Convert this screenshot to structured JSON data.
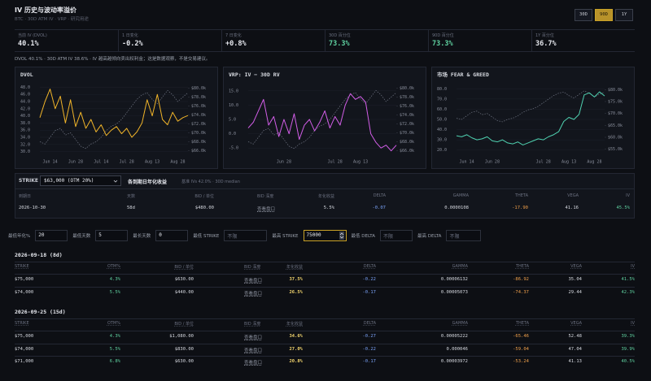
{
  "header": {
    "title": "IV 历史与波动率溢价",
    "subtitle": "BTC · 30D ATM IV · VRP · 研究用途",
    "ranges": [
      "30D",
      "90D",
      "1Y"
    ],
    "active_range": 1
  },
  "stats": [
    {
      "label": "当前 IV (DVOL)",
      "value": "40.1%",
      "tone": "plain"
    },
    {
      "label": "1 日变化",
      "value": "-0.2%",
      "tone": "plain"
    },
    {
      "label": "7 日变化",
      "value": "+0.8%",
      "tone": "plain"
    },
    {
      "label": "30D 百分位",
      "value": "73.3%",
      "tone": "green"
    },
    {
      "label": "90D 百分位",
      "value": "73.3%",
      "tone": "green"
    },
    {
      "label": "1Y 百分位",
      "value": "36.7%",
      "tone": "plain"
    }
  ],
  "note": "DVOL 40.1% · 30D ATM IV 38.6% · IV 越高越倾向卖出权利金；这是数据观察，不是交易建议。",
  "chart_data": [
    {
      "type": "line",
      "title": "DVOL",
      "categories": [
        null,
        null,
        "Jun 14",
        null,
        null,
        null,
        null,
        "Jun 28",
        null,
        null,
        null,
        null,
        "Jul 14",
        null,
        null,
        null,
        null,
        "Jul 28",
        null,
        null,
        null,
        null,
        "Aug 13",
        null,
        null,
        null,
        null,
        "Aug 28",
        null,
        null
      ],
      "series": [
        {
          "color": "#f0b429",
          "values": [
            39.5,
            44.0,
            47.5,
            42.0,
            45.5,
            38.0,
            44.5,
            37.0,
            41.0,
            36.5,
            39.0,
            35.5,
            37.5,
            34.5,
            36.0,
            37.0,
            35.0,
            36.5,
            34.0,
            35.5,
            38.0,
            44.5,
            40.0,
            46.0,
            39.0,
            37.5,
            41.0,
            38.5,
            39.5,
            40.1
          ]
        },
        {
          "color": "#6f7482",
          "axis": "y2",
          "dashed": true,
          "values": [
            68000,
            67500,
            69000,
            70500,
            71000,
            69500,
            70000,
            68500,
            67000,
            66500,
            67500,
            68000,
            69000,
            70500,
            71500,
            72000,
            73000,
            74500,
            76000,
            77500,
            78500,
            79000,
            77500,
            76500,
            78000,
            79500,
            78500,
            77000,
            78000,
            79000
          ]
        }
      ],
      "ylim": [
        29,
        49
      ],
      "yticks": [
        {
          "value": 48,
          "label": "48.0"
        },
        {
          "value": 46,
          "label": "46.0"
        },
        {
          "value": 44,
          "label": "44.0"
        },
        {
          "value": 42,
          "label": "42.0"
        },
        {
          "value": 40,
          "label": "40.0"
        },
        {
          "value": 38,
          "label": "38.0"
        },
        {
          "value": 36,
          "label": "36.0"
        },
        {
          "value": 34,
          "label": "34.0"
        },
        {
          "value": 32,
          "label": "32.0"
        },
        {
          "value": 30,
          "label": "30.0"
        }
      ],
      "y2lim": [
        65000,
        81000
      ],
      "y2ticks": [
        {
          "value": 80000,
          "label": "$80.0k"
        },
        {
          "value": 78000,
          "label": "$78.0k"
        },
        {
          "value": 76000,
          "label": "$76.0k"
        },
        {
          "value": 74000,
          "label": "$74.0k"
        },
        {
          "value": 72000,
          "label": "$72.0k"
        },
        {
          "value": 70000,
          "label": "$70.0k"
        },
        {
          "value": 68000,
          "label": "$68.0k"
        },
        {
          "value": 66000,
          "label": "$66.0k"
        }
      ],
      "grid": true
    },
    {
      "type": "line",
      "title": "VRP: IV − 30D RV",
      "categories": [
        null,
        null,
        null,
        null,
        null,
        null,
        null,
        "Jun 28",
        null,
        null,
        null,
        null,
        null,
        null,
        null,
        null,
        null,
        "Jul 28",
        null,
        null,
        null,
        null,
        "Aug 13",
        null,
        null,
        null,
        null,
        null,
        null,
        null
      ],
      "series": [
        {
          "color": "#d35ee8",
          "values": [
            2,
            4,
            8,
            12,
            3,
            6,
            -1,
            5,
            0,
            7,
            -2,
            3,
            5,
            1,
            4,
            8,
            2,
            6,
            3,
            10,
            14,
            12,
            13,
            11,
            0,
            -3,
            -5,
            -4,
            -6,
            -4
          ]
        },
        {
          "color": "#6f7482",
          "axis": "y2",
          "dashed": true,
          "values": [
            68000,
            67500,
            69000,
            70500,
            71000,
            69500,
            70000,
            68500,
            67000,
            66500,
            67500,
            68000,
            69000,
            70500,
            71500,
            72000,
            73000,
            74500,
            76000,
            77500,
            78500,
            79000,
            77500,
            76500,
            78000,
            79500,
            78500,
            77000,
            78000,
            79000
          ]
        }
      ],
      "ylim": [
        -7.5,
        17.5
      ],
      "yticks": [
        {
          "value": 15,
          "label": "15.0"
        },
        {
          "value": 10,
          "label": "10.0"
        },
        {
          "value": 5,
          "label": "5.0"
        },
        {
          "value": 0,
          "label": "0.0"
        },
        {
          "value": -5,
          "label": "-5.0"
        }
      ],
      "y2lim": [
        65000,
        81000
      ],
      "y2ticks": [
        {
          "value": 80000,
          "label": "$80.0k"
        },
        {
          "value": 78000,
          "label": "$78.0k"
        },
        {
          "value": 76000,
          "label": "$76.0k"
        },
        {
          "value": 74000,
          "label": "$74.0k"
        },
        {
          "value": 72000,
          "label": "$72.0k"
        },
        {
          "value": 70000,
          "label": "$70.0k"
        },
        {
          "value": 68000,
          "label": "$68.0k"
        },
        {
          "value": 66000,
          "label": "$66.0k"
        }
      ],
      "grid": true
    },
    {
      "type": "line",
      "title": "市场 FEAR & GREED",
      "categories": [
        null,
        null,
        "Jun 14",
        null,
        null,
        null,
        null,
        "Jun 28",
        null,
        null,
        null,
        null,
        null,
        null,
        null,
        null,
        null,
        "Jul 28",
        null,
        null,
        null,
        null,
        "Aug 13",
        null,
        null,
        null,
        null,
        "Aug 28",
        null,
        null
      ],
      "series": [
        {
          "color": "#4fd1b0",
          "values": [
            34,
            33,
            35,
            32,
            30,
            31,
            33,
            29,
            28,
            30,
            27,
            26,
            28,
            25,
            27,
            29,
            31,
            30,
            33,
            35,
            38,
            48,
            52,
            50,
            55,
            74,
            76,
            72,
            77,
            73
          ]
        },
        {
          "color": "#6f7482",
          "axis": "y2",
          "dashed": true,
          "values": [
            68000,
            67500,
            69000,
            70500,
            71000,
            69500,
            70000,
            68500,
            67000,
            66500,
            67500,
            68000,
            69000,
            70500,
            71500,
            72000,
            73000,
            74500,
            76000,
            77500,
            78500,
            79000,
            77500,
            76500,
            78000,
            79500,
            78500,
            77000,
            78000,
            79000
          ]
        }
      ],
      "ylim": [
        15,
        85
      ],
      "yticks": [
        {
          "value": 80,
          "label": "80.0"
        },
        {
          "value": 70,
          "label": "70.0"
        },
        {
          "value": 60,
          "label": "60.0"
        },
        {
          "value": 50,
          "label": "50.0"
        },
        {
          "value": 40,
          "label": "40.0"
        },
        {
          "value": 30,
          "label": "30.0"
        },
        {
          "value": 20,
          "label": "20.0"
        }
      ],
      "y2lim": [
        52500,
        82500
      ],
      "y2ticks": [
        {
          "value": 80000,
          "label": "$80.0k"
        },
        {
          "value": 75000,
          "label": "$75.0k"
        },
        {
          "value": 70000,
          "label": "$70.0k"
        },
        {
          "value": 65000,
          "label": "$65.0k"
        },
        {
          "value": 60000,
          "label": "$60.0k"
        },
        {
          "value": 55000,
          "label": "$55.0k"
        }
      ],
      "grid": true
    }
  ],
  "strike_panel": {
    "label": "STRIKE",
    "select": "$63,000 (OTM 20%)",
    "title": "各到期日年化收益",
    "baseline": "基准 IVs 42.0% · 30D median",
    "columns": [
      "到期日",
      "天数",
      "BID / 单位",
      "BID 深度",
      "年化收益",
      "DELTA",
      "GAMMA",
      "THETA",
      "VEGA",
      "IV"
    ],
    "rows": [
      [
        "2026-10-30",
        "58d",
        "$480.00",
        "查看盘口",
        "5.5%",
        "-0.07",
        "0.0000108",
        "-17.90",
        "41.16",
        "45.5%"
      ]
    ]
  },
  "filters": [
    {
      "label": "最低年化%",
      "value": "20"
    },
    {
      "label": "最低天数",
      "value": "5"
    },
    {
      "label": "最长天数",
      "value": "0"
    },
    {
      "label": "最低 STRIKE",
      "value": "不限"
    },
    {
      "label": "最高 STRIKE",
      "value": "75000"
    },
    {
      "label": "最低 DELTA",
      "value": "不限"
    },
    {
      "label": "最高 DELTA",
      "value": "不限"
    }
  ],
  "active_filter": 4,
  "expiries": [
    {
      "title": "2026-09-18 (8d)",
      "columns": [
        "STRIKE",
        "OTM%",
        "BID / 单位",
        "BID 深度",
        "年化收益",
        "DELTA",
        "GAMMA",
        "THETA",
        "VEGA",
        "IV"
      ],
      "rows": [
        [
          "$75,000",
          "4.3%",
          "$630.00",
          "查看盘口",
          "37.5%",
          "-0.22",
          "0.00006132",
          "-86.92",
          "35.04",
          "41.5%"
        ],
        [
          "$74,000",
          "5.5%",
          "$440.00",
          "查看盘口",
          "26.5%",
          "-0.17",
          "0.00005073",
          "-74.37",
          "29.44",
          "42.3%"
        ]
      ]
    },
    {
      "title": "2026-09-25 (15d)",
      "columns": [
        "STRIKE",
        "OTM%",
        "BID / 单位",
        "BID 深度",
        "年化收益",
        "DELTA",
        "GAMMA",
        "THETA",
        "VEGA",
        "IV"
      ],
      "rows": [
        [
          "$75,000",
          "4.3%",
          "$1,080.00",
          "查看盘口",
          "34.6%",
          "-0.27",
          "0.00005222",
          "-65.46",
          "52.48",
          "39.3%"
        ],
        [
          "$74,000",
          "5.5%",
          "$830.00",
          "查看盘口",
          "27.0%",
          "-0.22",
          "0.000046",
          "-59.04",
          "47.04",
          "39.9%"
        ],
        [
          "$71,000",
          "6.8%",
          "$630.00",
          "查看盘口",
          "20.8%",
          "-0.17",
          "0.00003972",
          "-53.24",
          "41.13",
          "40.5%"
        ]
      ]
    }
  ]
}
